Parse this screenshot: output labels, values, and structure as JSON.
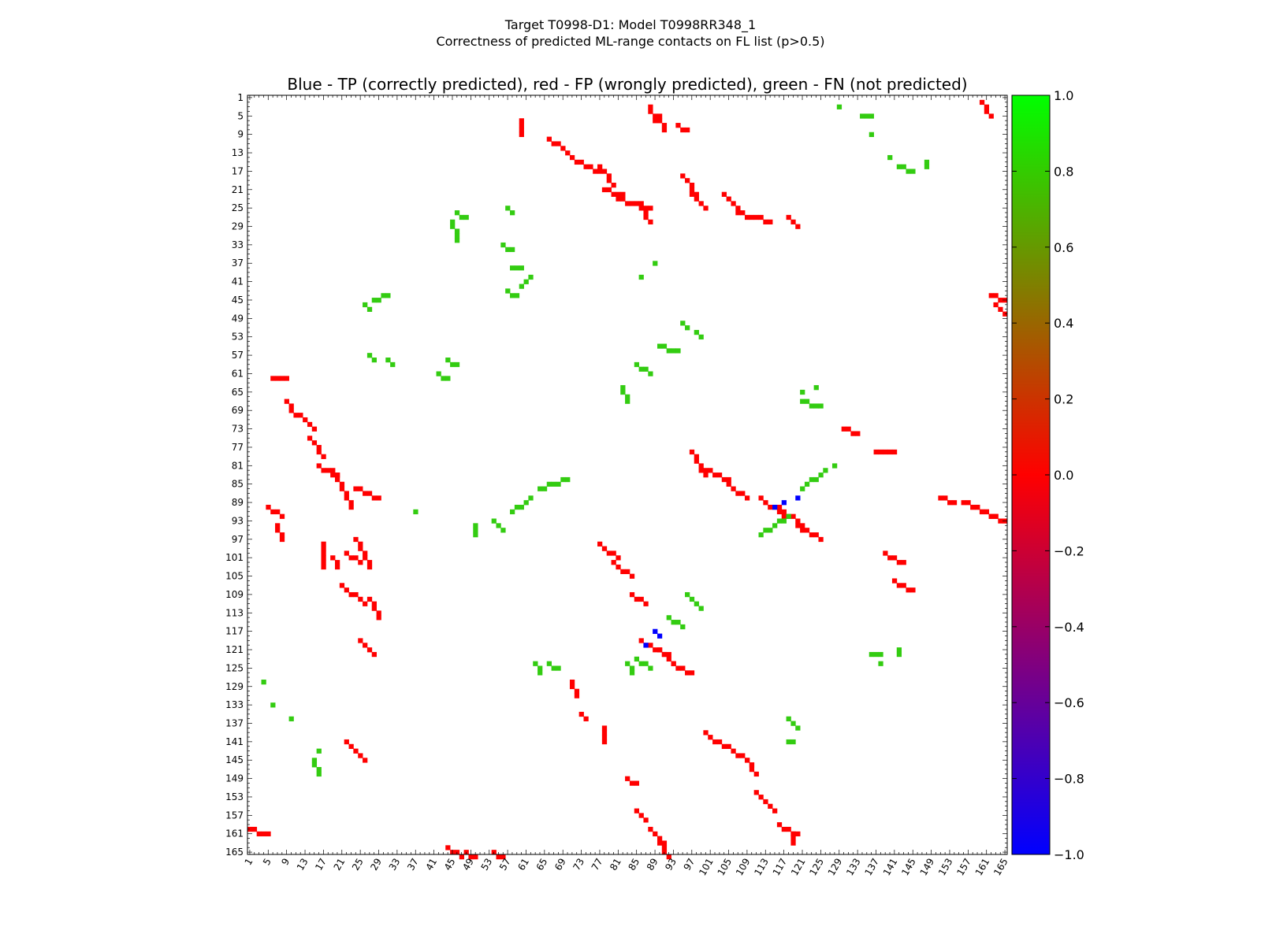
{
  "title_line1": "Target T0998-D1: Model T0998RR348_1",
  "title_line2": "Correctness of predicted ML-range contacts on FL list (p>0.5)",
  "chart_data": {
    "type": "heatmap",
    "subtitle": "Blue - TP (correctly predicted), red - FP (wrongly predicted), green - FN (not predicted)",
    "n_residues": 165,
    "tick_labels": [
      "1",
      "5",
      "9",
      "13",
      "17",
      "21",
      "25",
      "29",
      "33",
      "37",
      "41",
      "45",
      "49",
      "53",
      "57",
      "61",
      "65",
      "69",
      "73",
      "77",
      "81",
      "85",
      "89",
      "93",
      "97",
      "101",
      "105",
      "109",
      "113",
      "117",
      "121",
      "125",
      "129",
      "133",
      "137",
      "141",
      "145",
      "149",
      "153",
      "157",
      "161",
      "165"
    ],
    "colorbar": {
      "min": -1.0,
      "max": 1.0,
      "tick_labels": [
        "1.0",
        "0.8",
        "0.6",
        "0.4",
        "0.2",
        "0.0",
        "−0.2",
        "−0.4",
        "−0.6",
        "−0.8",
        "−1.0"
      ],
      "stops": [
        "#0000ff",
        "#ff0000",
        "#00ff00"
      ]
    },
    "colors": {
      "TP": "#0000ff",
      "FP": "#ff0000",
      "FN": "#33cc11"
    },
    "fp_segments": [
      [
        6,
        62,
        9,
        62
      ],
      [
        9,
        67,
        11,
        70
      ],
      [
        12,
        70,
        15,
        73
      ],
      [
        14,
        75,
        17,
        79
      ],
      [
        16,
        81,
        20,
        83
      ],
      [
        19,
        82,
        23,
        90
      ],
      [
        24,
        86,
        29,
        88
      ],
      [
        5,
        90,
        8,
        92
      ],
      [
        7,
        94,
        8,
        97
      ],
      [
        24,
        97,
        27,
        103
      ],
      [
        22,
        100,
        25,
        102
      ],
      [
        19,
        101,
        20,
        103
      ],
      [
        17,
        98,
        17,
        103
      ],
      [
        21,
        107,
        26,
        111
      ],
      [
        27,
        110,
        29,
        114
      ],
      [
        25,
        119,
        28,
        122
      ],
      [
        22,
        141,
        26,
        145
      ],
      [
        1,
        160,
        5,
        161
      ],
      [
        44,
        164,
        47,
        166
      ],
      [
        48,
        165,
        50,
        166
      ],
      [
        54,
        165,
        56,
        166
      ],
      [
        60,
        6,
        60,
        9
      ],
      [
        66,
        10,
        69,
        12
      ],
      [
        70,
        13,
        72,
        15
      ],
      [
        73,
        15,
        77,
        17
      ],
      [
        77,
        16,
        80,
        20
      ],
      [
        78,
        21,
        82,
        22
      ],
      [
        81,
        23,
        88,
        25
      ],
      [
        86,
        25,
        88,
        28
      ],
      [
        88,
        3,
        89,
        6
      ],
      [
        90,
        5,
        91,
        8
      ],
      [
        94,
        7,
        96,
        8
      ],
      [
        95,
        18,
        98,
        22
      ],
      [
        97,
        22,
        100,
        25
      ],
      [
        104,
        22,
        107,
        25
      ],
      [
        107,
        26,
        114,
        28
      ],
      [
        118,
        27,
        120,
        29
      ],
      [
        130,
        73,
        133,
        74
      ],
      [
        137,
        78,
        141,
        78
      ],
      [
        97,
        78,
        100,
        83
      ],
      [
        100,
        82,
        105,
        84
      ],
      [
        105,
        85,
        109,
        88
      ],
      [
        112,
        88,
        117,
        92
      ],
      [
        116,
        90,
        121,
        94
      ],
      [
        120,
        94,
        125,
        97
      ],
      [
        139,
        100,
        143,
        102
      ],
      [
        141,
        106,
        145,
        108
      ],
      [
        151,
        88,
        154,
        89
      ],
      [
        156,
        89,
        163,
        92
      ],
      [
        158,
        90,
        165,
        93
      ],
      [
        162,
        44,
        165,
        45
      ],
      [
        163,
        46,
        165,
        48
      ],
      [
        160,
        2,
        162,
        5
      ],
      [
        77,
        98,
        81,
        101
      ],
      [
        80,
        102,
        84,
        105
      ],
      [
        84,
        109,
        87,
        111
      ],
      [
        86,
        119,
        92,
        122
      ],
      [
        90,
        121,
        93,
        124
      ],
      [
        93,
        124,
        97,
        126
      ],
      [
        71,
        128,
        72,
        131
      ],
      [
        73,
        135,
        74,
        136
      ],
      [
        78,
        138,
        78,
        141
      ],
      [
        100,
        139,
        104,
        142
      ],
      [
        105,
        142,
        110,
        146
      ],
      [
        109,
        145,
        111,
        148
      ],
      [
        111,
        152,
        115,
        156
      ],
      [
        116,
        159,
        120,
        161
      ],
      [
        119,
        161,
        119,
        163
      ],
      [
        83,
        149,
        85,
        150
      ],
      [
        85,
        156,
        87,
        158
      ],
      [
        88,
        160,
        91,
        163
      ],
      [
        90,
        163,
        92,
        166
      ]
    ],
    "fn_segments": [
      [
        46,
        26,
        48,
        27
      ],
      [
        45,
        28,
        46,
        32
      ],
      [
        57,
        25,
        58,
        26
      ],
      [
        56,
        33,
        58,
        34
      ],
      [
        58,
        38,
        60,
        38
      ],
      [
        57,
        43,
        59,
        44
      ],
      [
        60,
        42,
        62,
        40
      ],
      [
        26,
        46,
        27,
        47
      ],
      [
        28,
        45,
        31,
        44
      ],
      [
        95,
        50,
        96,
        51
      ],
      [
        98,
        52,
        99,
        53
      ],
      [
        90,
        55,
        94,
        56
      ],
      [
        85,
        59,
        88,
        61
      ],
      [
        82,
        64,
        83,
        67
      ],
      [
        44,
        58,
        46,
        59
      ],
      [
        42,
        61,
        44,
        62
      ],
      [
        27,
        57,
        28,
        58
      ],
      [
        31,
        58,
        32,
        59
      ],
      [
        54,
        93,
        56,
        95
      ],
      [
        58,
        91,
        62,
        88
      ],
      [
        64,
        86,
        70,
        84
      ],
      [
        50,
        94,
        50,
        96
      ],
      [
        37,
        91,
        37,
        91
      ],
      [
        121,
        86,
        126,
        82
      ],
      [
        128,
        81,
        128,
        81
      ],
      [
        112,
        96,
        118,
        92
      ],
      [
        121,
        67,
        125,
        68
      ],
      [
        121,
        65,
        121,
        65
      ],
      [
        124,
        64,
        124,
        64
      ],
      [
        96,
        109,
        99,
        112
      ],
      [
        92,
        114,
        95,
        116
      ],
      [
        85,
        123,
        88,
        125
      ],
      [
        83,
        124,
        84,
        126
      ],
      [
        66,
        124,
        68,
        125
      ],
      [
        63,
        124,
        64,
        126
      ],
      [
        136,
        122,
        138,
        122
      ],
      [
        138,
        124,
        138,
        124
      ],
      [
        142,
        121,
        142,
        122
      ],
      [
        4,
        128,
        4,
        128
      ],
      [
        6,
        133,
        6,
        133
      ],
      [
        10,
        136,
        10,
        136
      ],
      [
        15,
        145,
        16,
        148
      ],
      [
        16,
        143,
        16,
        143
      ],
      [
        118,
        136,
        120,
        138
      ],
      [
        118,
        141,
        119,
        141
      ],
      [
        129,
        3,
        129,
        3
      ],
      [
        134,
        5,
        136,
        5
      ],
      [
        136,
        9,
        136,
        9
      ],
      [
        142,
        16,
        145,
        17
      ],
      [
        140,
        14,
        140,
        14
      ],
      [
        148,
        15,
        148,
        16
      ],
      [
        89,
        37,
        89,
        37
      ],
      [
        86,
        40,
        86,
        40
      ]
    ],
    "tp_points": [
      [
        115,
        90
      ],
      [
        117,
        89
      ],
      [
        120,
        88
      ],
      [
        89,
        117
      ],
      [
        87,
        120
      ],
      [
        90,
        118
      ]
    ]
  }
}
